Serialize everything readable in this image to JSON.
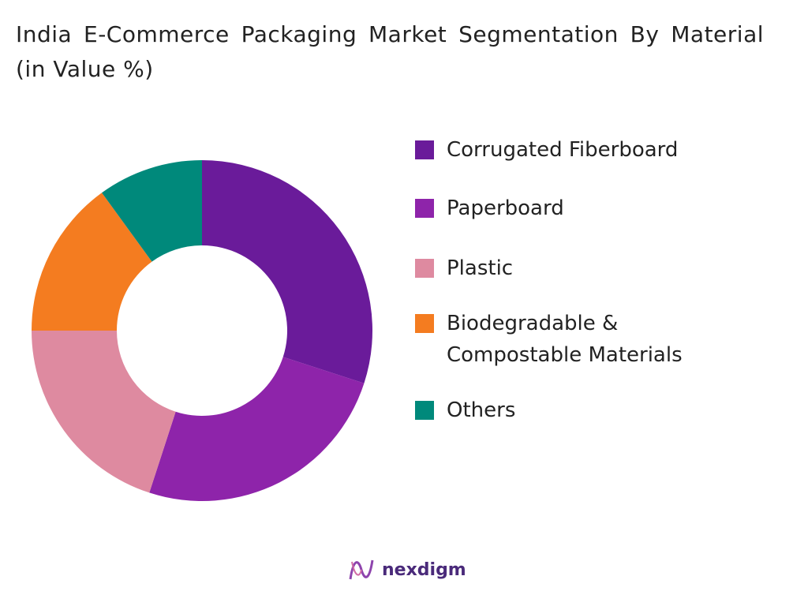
{
  "chart_data": {
    "type": "donut",
    "title": "India E-Commerce Packaging Market Segmentation By Material (in Value %)",
    "categories": [
      "Corrugated Fiberboard",
      "Paperboard",
      "Plastic",
      "Biodegradable & Compostable Materials",
      "Others"
    ],
    "values": [
      30,
      25,
      20,
      15,
      10
    ],
    "colors": [
      "#6a1b9a",
      "#8e24aa",
      "#de8aa0",
      "#f47c20",
      "#00897b"
    ]
  },
  "brand": "nexdigm"
}
